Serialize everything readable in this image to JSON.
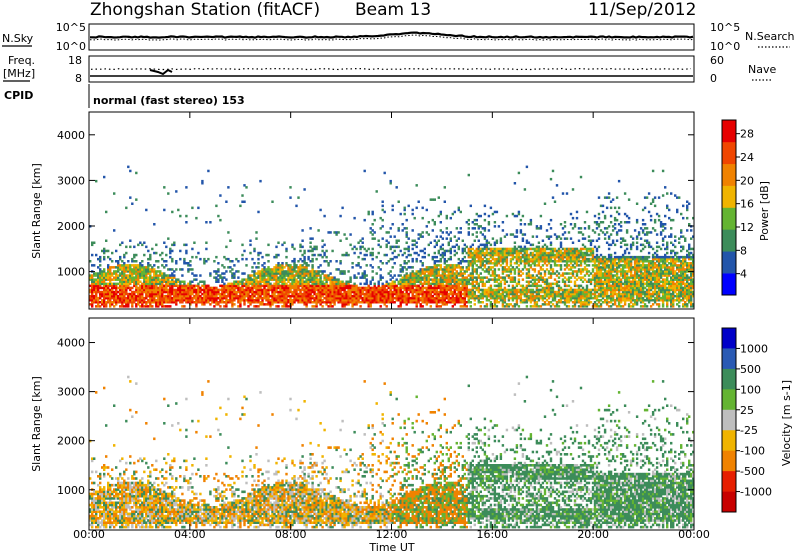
{
  "header": {
    "station": "Zhongshan Station (fitACF)",
    "beam": "Beam 13",
    "date": "11/Sep/2012"
  },
  "top_panels": {
    "nsky_label": "N.Sky",
    "nsky_ticks": [
      "10^5",
      "10^0"
    ],
    "nsearch_label": "N.Search",
    "nsearch_ticks": [
      "10^5",
      "10^0"
    ],
    "freq_label": "Freq.",
    "freq_unit": "[MHz]",
    "freq_ticks": [
      "18",
      "8"
    ],
    "nave_label": "Nave",
    "nave_ticks": [
      "60",
      "0"
    ],
    "cpid_label": "CPID",
    "cpid_text": "normal (fast stereo) 153"
  },
  "colors": {
    "power_scale": [
      "#0000ff",
      "#2255aa",
      "#3c8c5a",
      "#64b432",
      "#f0b400",
      "#f08200",
      "#f04600",
      "#e60000"
    ],
    "velocity_scale": [
      "#0000c8",
      "#2a5ab4",
      "#3c8c5a",
      "#64b432",
      "#bebebe",
      "#f0b400",
      "#f08200",
      "#e61e00",
      "#c80000"
    ]
  },
  "chart_data": [
    {
      "type": "heatmap",
      "name": "power",
      "ylabel": "Slant Range [km]",
      "yticks": [
        "1000",
        "2000",
        "3000",
        "4000"
      ],
      "ylim": [
        180,
        4500
      ],
      "xlim": [
        0,
        24
      ],
      "colorbar_label": "Power [dB]",
      "colorbar_ticks": [
        "4",
        "8",
        "12",
        "16",
        "20",
        "24",
        "28"
      ],
      "colorbar_range": [
        0,
        30
      ]
    },
    {
      "type": "heatmap",
      "name": "velocity",
      "ylabel": "Slant Range [km]",
      "yticks": [
        "1000",
        "2000",
        "3000",
        "4000"
      ],
      "ylim": [
        180,
        4500
      ],
      "xlim": [
        0,
        24
      ],
      "colorbar_label": "Velocity [m s-1]",
      "colorbar_ticks": [
        "1000",
        "500",
        "100",
        "25",
        "-25",
        "-100",
        "-500",
        "-1000"
      ]
    }
  ],
  "xaxis": {
    "label": "Time UT",
    "ticks": [
      "00:00",
      "04:00",
      "08:00",
      "12:00",
      "16:00",
      "20:00",
      "00:00"
    ]
  }
}
